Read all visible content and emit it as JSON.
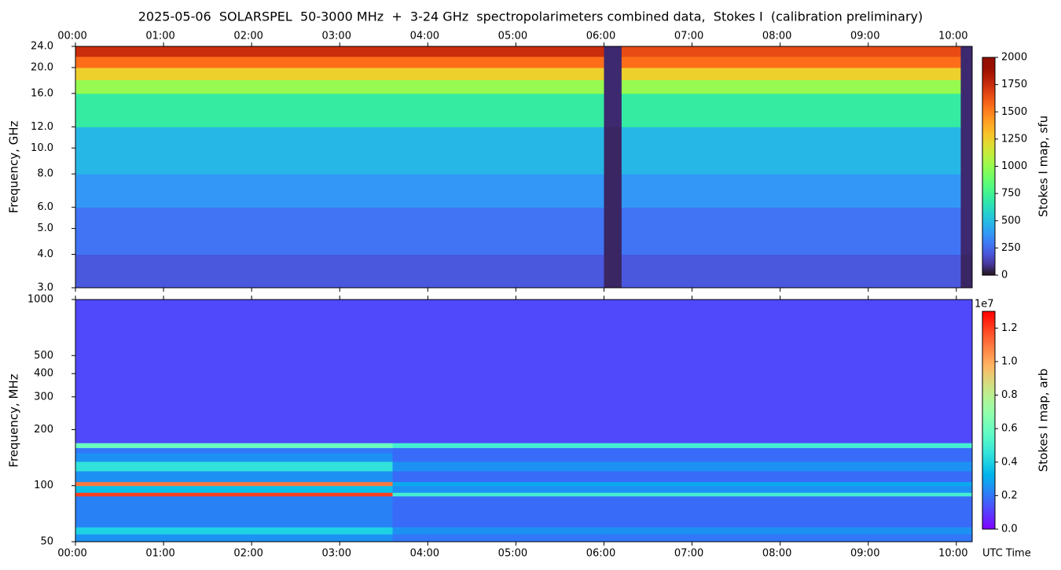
{
  "chart_data": [
    {
      "type": "heatmap",
      "title": "2025-05-06  SOLARSPEL  50-3000 MHz  +  3-24 GHz  spectropolarimeters combined data,  Stokes I  (calibration preliminary)",
      "y_label": "Frequency, GHz",
      "yscale": "log",
      "xtick_side": "top",
      "xlim": [
        0,
        10.18
      ],
      "ylim": [
        3,
        24
      ],
      "xticks": [
        {
          "value": 0,
          "label": "00:00"
        },
        {
          "value": 1,
          "label": "01:00"
        },
        {
          "value": 2,
          "label": "02:00"
        },
        {
          "value": 3,
          "label": "03:00"
        },
        {
          "value": 4,
          "label": "04:00"
        },
        {
          "value": 5,
          "label": "05:00"
        },
        {
          "value": 6,
          "label": "06:00"
        },
        {
          "value": 7,
          "label": "07:00"
        },
        {
          "value": 8,
          "label": "08:00"
        },
        {
          "value": 9,
          "label": "09:00"
        },
        {
          "value": 10,
          "label": "10:00"
        }
      ],
      "yticks": [
        {
          "value": 3,
          "label": "3.0"
        },
        {
          "value": 4,
          "label": "4.0"
        },
        {
          "value": 5,
          "label": "5.0"
        },
        {
          "value": 6,
          "label": "6.0"
        },
        {
          "value": 8,
          "label": "8.0"
        },
        {
          "value": 10,
          "label": "10.0"
        },
        {
          "value": 12,
          "label": "12.0"
        },
        {
          "value": 16,
          "label": "16.0"
        },
        {
          "value": 20,
          "label": "20.0"
        },
        {
          "value": 24,
          "label": "24.0"
        }
      ],
      "x_edges": [
        0,
        6.0,
        6.2,
        10.05,
        10.18
      ],
      "y_edges": [
        3,
        4,
        6,
        8,
        12,
        16,
        18,
        20,
        22,
        24
      ],
      "z": [
        [
          200,
          50,
          200,
          50
        ],
        [
          280,
          50,
          280,
          60
        ],
        [
          380,
          50,
          380,
          60
        ],
        [
          480,
          50,
          480,
          60
        ],
        [
          700,
          60,
          700,
          60
        ],
        [
          1000,
          60,
          1000,
          60
        ],
        [
          1250,
          60,
          1250,
          60
        ],
        [
          1550,
          60,
          1550,
          60
        ],
        [
          1750,
          60,
          1650,
          60
        ]
      ],
      "colormap": "turbo",
      "colorbar": {
        "label": "Stokes I map, sfu",
        "lim": [
          0,
          2000
        ],
        "ticks": [
          0,
          250,
          500,
          750,
          1000,
          1250,
          1500,
          1750,
          2000
        ]
      }
    },
    {
      "type": "heatmap",
      "y_label": "Frequency, MHz",
      "x_label": "UTC Time",
      "yscale": "log",
      "xtick_side": "bottom",
      "xlim": [
        0,
        10.18
      ],
      "ylim": [
        50,
        1000
      ],
      "xticks": [
        {
          "value": 0,
          "label": "00:00"
        },
        {
          "value": 1,
          "label": "01:00"
        },
        {
          "value": 2,
          "label": "02:00"
        },
        {
          "value": 3,
          "label": "03:00"
        },
        {
          "value": 4,
          "label": "04:00"
        },
        {
          "value": 5,
          "label": "05:00"
        },
        {
          "value": 6,
          "label": "06:00"
        },
        {
          "value": 7,
          "label": "07:00"
        },
        {
          "value": 8,
          "label": "08:00"
        },
        {
          "value": 9,
          "label": "09:00"
        },
        {
          "value": 10,
          "label": "10:00"
        }
      ],
      "yticks": [
        50,
        100,
        200,
        300,
        400,
        500,
        1000
      ],
      "x_edges": [
        0,
        3.6,
        10.18
      ],
      "y_edges": [
        50,
        55,
        60,
        88,
        92,
        100,
        105,
        120,
        135,
        150,
        160,
        170,
        1000
      ],
      "z": [
        [
          2500000,
          2000000
        ],
        [
          4000000,
          2500000
        ],
        [
          2200000,
          1800000
        ],
        [
          12000000,
          5000000
        ],
        [
          3500000,
          2500000
        ],
        [
          11000000,
          3000000
        ],
        [
          2500000,
          1800000
        ],
        [
          4500000,
          2500000
        ],
        [
          2500000,
          1800000
        ],
        [
          2000000,
          1800000
        ],
        [
          6000000,
          5000000
        ],
        [
          1200000,
          1200000
        ]
      ],
      "colormap": "rainbow",
      "colorbar": {
        "label": "Stokes I map, arb",
        "offset_label": "1e7",
        "lim": [
          0,
          13000000
        ],
        "ticks": [
          {
            "value": 0,
            "label": "0.0"
          },
          {
            "value": 2000000,
            "label": "0.2"
          },
          {
            "value": 4000000,
            "label": "0.4"
          },
          {
            "value": 6000000,
            "label": "0.6"
          },
          {
            "value": 8000000,
            "label": "0.8"
          },
          {
            "value": 10000000,
            "label": "1.0"
          },
          {
            "value": 12000000,
            "label": "1.2"
          }
        ]
      }
    }
  ]
}
